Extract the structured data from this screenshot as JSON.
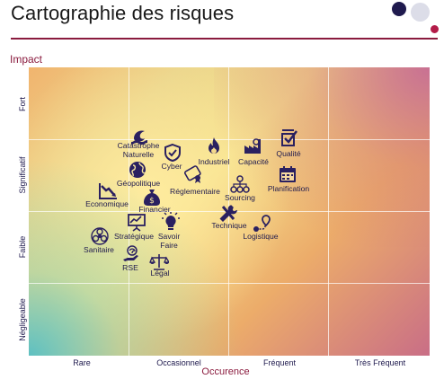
{
  "header": {
    "title": "Cartographie des risques",
    "accent_color": "#8a1b3e"
  },
  "logo": {
    "dots": [
      {
        "color": "#1f1a4e"
      },
      {
        "color": "#dcdde8"
      },
      {
        "color": "#b31b48"
      }
    ]
  },
  "axes": {
    "y_title": "Impact",
    "x_title": "Occurence",
    "y_levels": [
      "Fort",
      "Significatif",
      "Faible",
      "Négligeable"
    ],
    "x_levels": [
      "Rare",
      "Occasionnel",
      "Fréquent",
      "Très Fréquent"
    ]
  },
  "colors": {
    "icon": "#2a2060",
    "low_risk": "#58bcc2",
    "mid_risk": "#f6e28e",
    "high_risk": "#c96e86"
  },
  "risks": [
    {
      "id": "catastrophe-naturelle",
      "label": "Catastrophe\nNaturelle",
      "icon": "wave-icon"
    },
    {
      "id": "cyber",
      "label": "Cyber",
      "icon": "shield-icon"
    },
    {
      "id": "industriel",
      "label": "Industriel",
      "icon": "fire-icon"
    },
    {
      "id": "capacite",
      "label": "Capacité",
      "icon": "factory-icon"
    },
    {
      "id": "qualite",
      "label": "Qualité",
      "icon": "checkbox-icon"
    },
    {
      "id": "geopolitique",
      "label": "Géopolitique",
      "icon": "globe-icon"
    },
    {
      "id": "reglementaire",
      "label": "Réglementaire",
      "icon": "diploma-icon"
    },
    {
      "id": "sourcing",
      "label": "Sourcing",
      "icon": "network-icon"
    },
    {
      "id": "planification",
      "label": "Planification",
      "icon": "calendar-icon"
    },
    {
      "id": "economique",
      "label": "Economique",
      "icon": "chart-down-icon"
    },
    {
      "id": "financier",
      "label": "Financier",
      "icon": "money-bag-icon"
    },
    {
      "id": "technique",
      "label": "Technique",
      "icon": "tools-icon"
    },
    {
      "id": "logistique",
      "label": "Logistique",
      "icon": "route-icon"
    },
    {
      "id": "strategique",
      "label": "Stratégique",
      "icon": "presentation-icon"
    },
    {
      "id": "savoir-faire",
      "label": "Savoir\nFaire",
      "icon": "lightbulb-icon"
    },
    {
      "id": "sanitaire",
      "label": "Sanitaire",
      "icon": "biohazard-icon"
    },
    {
      "id": "rse",
      "label": "RSE",
      "icon": "eco-hand-icon"
    },
    {
      "id": "legal",
      "label": "Légal",
      "icon": "scales-icon"
    }
  ]
}
